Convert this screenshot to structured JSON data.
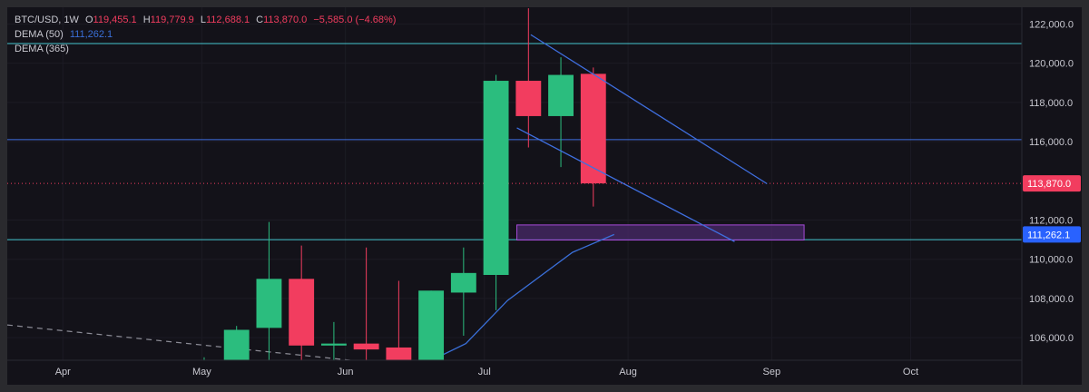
{
  "legend": {
    "symbol": "BTC/USD",
    "interval": "1W",
    "open_label": "O",
    "open": "119,455.1",
    "high_label": "H",
    "high": "119,779.9",
    "low_label": "L",
    "low": "112,688.1",
    "close_label": "C",
    "close": "113,870.0",
    "change": "−5,585.0 (−4.68%)",
    "dema50_label": "DEMA (50)",
    "dema50_value": "111,262.1",
    "dema365_label": "DEMA (365)"
  },
  "colors": {
    "background": "#131219",
    "up": "#2bbd7e",
    "down": "#f23d5f",
    "text": "#c9c9d1",
    "dema_line": "#3a6fd8",
    "horizontal_cyan": "#46c7d0",
    "horizontal_blue": "#3f6fe0",
    "zone_fill": "#4a2a6a",
    "zone_border": "#a64bd8",
    "price_badge_red": "#f23d5f",
    "price_badge_blue": "#2962ff"
  },
  "chart_data": {
    "type": "candlestick",
    "symbol": "BTC/USD",
    "interval": "1W",
    "y_axis": {
      "ticks": [
        "122,000.0",
        "120,000.0",
        "118,000.0",
        "116,000.0",
        "112,000.0",
        "110,000.0",
        "108,000.0",
        "106,000.0"
      ],
      "tick_values": [
        122000,
        120000,
        118000,
        116000,
        112000,
        110000,
        108000,
        106000
      ],
      "range": [
        104850,
        122850
      ]
    },
    "x_axis": {
      "labels": [
        "Apr",
        "May",
        "Jun",
        "Jul",
        "Aug",
        "Sep",
        "Oct"
      ],
      "dates": [
        "2025-04-01",
        "2025-05-01",
        "2025-06-01",
        "2025-07-01",
        "2025-08-01",
        "2025-09-01",
        "2025-10-01"
      ],
      "range": [
        "2025-03-20",
        "2025-10-25"
      ]
    },
    "candles": [
      {
        "date": "2025-04-28",
        "open": 104500,
        "high": 105000,
        "low": 104300,
        "close": 104800
      },
      {
        "date": "2025-05-05",
        "open": 104600,
        "high": 106600,
        "low": 104400,
        "close": 106400
      },
      {
        "date": "2025-05-12",
        "open": 106500,
        "high": 111900,
        "low": 104300,
        "close": 109000
      },
      {
        "date": "2025-05-19",
        "open": 109000,
        "high": 110700,
        "low": 104600,
        "close": 105600
      },
      {
        "date": "2025-05-26",
        "open": 105600,
        "high": 106800,
        "low": 104300,
        "close": 105700
      },
      {
        "date": "2025-06-02",
        "open": 105700,
        "high": 110600,
        "low": 104200,
        "close": 105400
      },
      {
        "date": "2025-06-09",
        "open": 105500,
        "high": 108900,
        "low": 103900,
        "close": 104100
      },
      {
        "date": "2025-06-16",
        "open": 104000,
        "high": 108400,
        "low": 103000,
        "close": 108400
      },
      {
        "date": "2025-06-23",
        "open": 108300,
        "high": 110600,
        "low": 106100,
        "close": 109300
      },
      {
        "date": "2025-06-30",
        "open": 109200,
        "high": 119400,
        "low": 107400,
        "close": 119100
      },
      {
        "date": "2025-07-07",
        "open": 119100,
        "high": 122800,
        "low": 115700,
        "close": 117300
      },
      {
        "date": "2025-07-14",
        "open": 117300,
        "high": 120300,
        "low": 114700,
        "close": 119400
      },
      {
        "date": "2025-07-21",
        "open": 119455.1,
        "high": 119779.9,
        "low": 112688.1,
        "close": 113870.0
      }
    ],
    "horizontal_lines": [
      {
        "price": 121000,
        "color": "cyan"
      },
      {
        "price": 116100,
        "color": "blue"
      },
      {
        "price": 111000,
        "color": "cyan"
      },
      {
        "price": 113870.0,
        "color": "red",
        "style": "dotted"
      }
    ],
    "trendlines": [
      {
        "from": {
          "date": "2025-07-11",
          "price": 121450
        },
        "to": {
          "date": "2025-08-31",
          "price": 113850
        }
      },
      {
        "from": {
          "date": "2025-07-08",
          "price": 116700
        },
        "to": {
          "date": "2025-08-24",
          "price": 110900
        }
      }
    ],
    "zone": {
      "from_date": "2025-07-08",
      "to_date": "2025-09-08",
      "top": 111750,
      "bottom": 110980
    },
    "dema50": [
      {
        "date": "2025-06-20",
        "value": 104900
      },
      {
        "date": "2025-06-27",
        "value": 105700
      },
      {
        "date": "2025-07-06",
        "value": 107900
      },
      {
        "date": "2025-07-20",
        "value": 110350
      },
      {
        "date": "2025-07-29",
        "value": 111262.1
      }
    ],
    "dashed_line": {
      "from": {
        "date": "2025-03-20",
        "price": 106650
      },
      "to": {
        "date": "2025-06-02",
        "price": 104850
      }
    },
    "price_labels": [
      {
        "text": "113,870.0",
        "price": 113870.0,
        "color": "red"
      },
      {
        "text": "111,262.1",
        "price": 111262.1,
        "color": "blue"
      }
    ]
  }
}
